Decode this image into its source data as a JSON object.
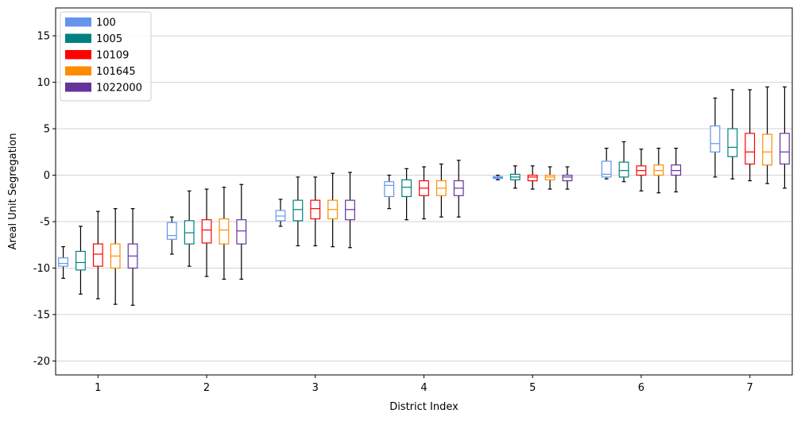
{
  "chart_data": {
    "type": "box",
    "title": "",
    "xlabel": "District Index",
    "ylabel": "Areal Unit Segregation",
    "ylim": [
      -21.5,
      18
    ],
    "yticks": [
      -20,
      -15,
      -10,
      -5,
      0,
      5,
      10,
      15
    ],
    "categories": [
      "1",
      "2",
      "3",
      "4",
      "5",
      "6",
      "7"
    ],
    "grid": "horizontal",
    "legend_position": "top-left",
    "series": [
      {
        "name": "100",
        "color": "#6495ED",
        "boxes": [
          {
            "whislo": -11.1,
            "q1": -9.8,
            "med": -9.5,
            "q3": -8.9,
            "whishi": -7.7
          },
          {
            "whislo": -8.5,
            "q1": -6.9,
            "med": -6.5,
            "q3": -5.1,
            "whishi": -4.5
          },
          {
            "whislo": -5.5,
            "q1": -4.9,
            "med": -4.4,
            "q3": -3.8,
            "whishi": -2.6
          },
          {
            "whislo": -3.6,
            "q1": -2.3,
            "med": -1.1,
            "q3": -0.7,
            "whishi": 0.0
          },
          {
            "whislo": -0.5,
            "q1": -0.35,
            "med": -0.25,
            "q3": -0.15,
            "whishi": 0.0
          },
          {
            "whislo": -0.4,
            "q1": -0.2,
            "med": 0.1,
            "q3": 1.5,
            "whishi": 2.9
          },
          {
            "whislo": -0.2,
            "q1": 2.5,
            "med": 3.4,
            "q3": 5.3,
            "whishi": 8.3
          }
        ]
      },
      {
        "name": "1005",
        "color": "#008080",
        "boxes": [
          {
            "whislo": -12.8,
            "q1": -10.2,
            "med": -9.4,
            "q3": -8.2,
            "whishi": -5.5
          },
          {
            "whislo": -9.8,
            "q1": -7.4,
            "med": -6.2,
            "q3": -4.9,
            "whishi": -1.7
          },
          {
            "whislo": -7.6,
            "q1": -4.9,
            "med": -3.7,
            "q3": -2.7,
            "whishi": -0.2
          },
          {
            "whislo": -4.8,
            "q1": -2.3,
            "med": -1.3,
            "q3": -0.5,
            "whishi": 0.7
          },
          {
            "whislo": -1.4,
            "q1": -0.5,
            "med": -0.2,
            "q3": 0.1,
            "whishi": 1.0
          },
          {
            "whislo": -0.7,
            "q1": -0.2,
            "med": 0.5,
            "q3": 1.4,
            "whishi": 3.6
          },
          {
            "whislo": -0.4,
            "q1": 2.0,
            "med": 3.0,
            "q3": 5.0,
            "whishi": 9.2
          }
        ]
      },
      {
        "name": "10109",
        "color": "#FF0000",
        "boxes": [
          {
            "whislo": -13.3,
            "q1": -9.8,
            "med": -8.5,
            "q3": -7.4,
            "whishi": -3.9
          },
          {
            "whislo": -10.9,
            "q1": -7.3,
            "med": -5.9,
            "q3": -4.8,
            "whishi": -1.5
          },
          {
            "whislo": -7.6,
            "q1": -4.7,
            "med": -3.6,
            "q3": -2.7,
            "whishi": -0.2
          },
          {
            "whislo": -4.7,
            "q1": -2.2,
            "med": -1.4,
            "q3": -0.6,
            "whishi": 0.9
          },
          {
            "whislo": -1.5,
            "q1": -0.6,
            "med": -0.2,
            "q3": 0.0,
            "whishi": 1.0
          },
          {
            "whislo": -1.7,
            "q1": 0.0,
            "med": 0.5,
            "q3": 1.0,
            "whishi": 2.8
          },
          {
            "whislo": -0.6,
            "q1": 1.2,
            "med": 2.5,
            "q3": 4.5,
            "whishi": 9.2
          }
        ]
      },
      {
        "name": "101645",
        "color": "#FF8C00",
        "boxes": [
          {
            "whislo": -13.9,
            "q1": -10.0,
            "med": -8.7,
            "q3": -7.4,
            "whishi": -3.6
          },
          {
            "whislo": -11.2,
            "q1": -7.4,
            "med": -5.9,
            "q3": -4.7,
            "whishi": -1.3
          },
          {
            "whislo": -7.7,
            "q1": -4.7,
            "med": -3.7,
            "q3": -2.7,
            "whishi": 0.2
          },
          {
            "whislo": -4.5,
            "q1": -2.2,
            "med": -1.4,
            "q3": -0.6,
            "whishi": 1.2
          },
          {
            "whislo": -1.5,
            "q1": -0.5,
            "med": -0.2,
            "q3": 0.0,
            "whishi": 0.9
          },
          {
            "whislo": -1.9,
            "q1": 0.0,
            "med": 0.5,
            "q3": 1.1,
            "whishi": 2.9
          },
          {
            "whislo": -0.9,
            "q1": 1.1,
            "med": 2.5,
            "q3": 4.4,
            "whishi": 9.5
          }
        ]
      },
      {
        "name": "1022000",
        "color": "#663399",
        "boxes": [
          {
            "whislo": -14.0,
            "q1": -10.0,
            "med": -8.7,
            "q3": -7.4,
            "whishi": -3.6
          },
          {
            "whislo": -11.2,
            "q1": -7.4,
            "med": -6.0,
            "q3": -4.8,
            "whishi": -1.0
          },
          {
            "whislo": -7.8,
            "q1": -4.8,
            "med": -3.7,
            "q3": -2.7,
            "whishi": 0.3
          },
          {
            "whislo": -4.5,
            "q1": -2.2,
            "med": -1.4,
            "q3": -0.6,
            "whishi": 1.6
          },
          {
            "whislo": -1.5,
            "q1": -0.6,
            "med": -0.2,
            "q3": 0.0,
            "whishi": 0.9
          },
          {
            "whislo": -1.8,
            "q1": 0.0,
            "med": 0.5,
            "q3": 1.1,
            "whishi": 2.9
          },
          {
            "whislo": -1.4,
            "q1": 1.2,
            "med": 2.5,
            "q3": 4.5,
            "whishi": 9.5
          }
        ]
      }
    ]
  }
}
